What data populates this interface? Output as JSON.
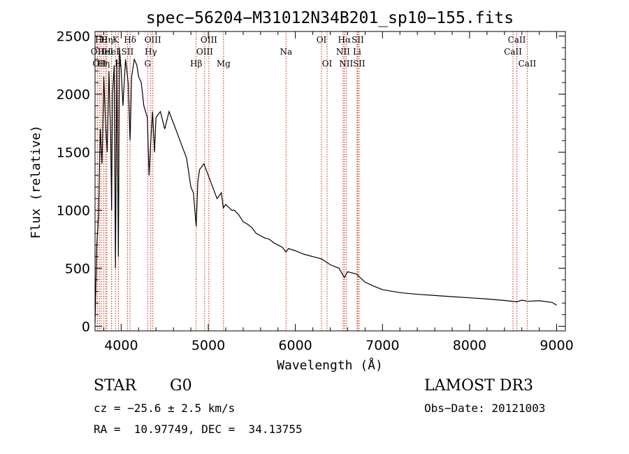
{
  "chart_data": {
    "type": "line",
    "title": "spec−56204−M31012N34B201_sp10−155.fits",
    "xlabel": "Wavelength (Å)",
    "ylabel": "Flux (relative)",
    "xlim": [
      3700,
      9100
    ],
    "ylim": [
      -40,
      2540
    ],
    "xticks": [
      4000,
      5000,
      6000,
      7000,
      8000,
      9000
    ],
    "yticks": [
      0,
      500,
      1000,
      1500,
      2000,
      2500
    ],
    "spectrum": {
      "x": [
        3700,
        3720,
        3740,
        3760,
        3780,
        3800,
        3820,
        3840,
        3860,
        3880,
        3890,
        3900,
        3920,
        3934,
        3950,
        3968,
        3980,
        4000,
        4020,
        4050,
        4080,
        4102,
        4120,
        4150,
        4180,
        4200,
        4230,
        4260,
        4300,
        4320,
        4340,
        4360,
        4383,
        4400,
        4450,
        4500,
        4550,
        4600,
        4650,
        4700,
        4750,
        4800,
        4830,
        4861,
        4880,
        4900,
        4950,
        5000,
        5050,
        5100,
        5150,
        5172,
        5200,
        5270,
        5300,
        5350,
        5400,
        5450,
        5500,
        5550,
        5600,
        5650,
        5700,
        5750,
        5800,
        5850,
        5893,
        5920,
        6000,
        6100,
        6200,
        6300,
        6400,
        6500,
        6563,
        6600,
        6700,
        6800,
        6900,
        7000,
        7200,
        7400,
        7600,
        7800,
        8000,
        8200,
        8400,
        8542,
        8600,
        8662,
        8800,
        8950,
        9000
      ],
      "y": [
        30,
        700,
        950,
        1700,
        1400,
        2150,
        1750,
        1500,
        2200,
        1600,
        1000,
        2000,
        2250,
        500,
        2300,
        600,
        2400,
        2200,
        1900,
        2300,
        2100,
        1600,
        2150,
        2300,
        2250,
        2150,
        2100,
        1900,
        1800,
        1300,
        1600,
        1850,
        1500,
        1800,
        1850,
        1700,
        1850,
        1750,
        1650,
        1550,
        1450,
        1200,
        1150,
        860,
        1250,
        1350,
        1400,
        1300,
        1200,
        1100,
        1150,
        1020,
        1050,
        1000,
        1000,
        960,
        900,
        880,
        850,
        800,
        780,
        760,
        750,
        720,
        700,
        680,
        640,
        670,
        650,
        620,
        600,
        580,
        530,
        500,
        420,
        470,
        450,
        380,
        345,
        315,
        290,
        275,
        265,
        255,
        245,
        235,
        222,
        210,
        225,
        215,
        220,
        205,
        180
      ]
    },
    "lines": [
      {
        "wl": 3727,
        "label": "OII",
        "row": 2
      },
      {
        "wl": 3750,
        "label": "OII",
        "row": 3
      },
      {
        "wl": 3770,
        "label": "Hθ",
        "row": 1
      },
      {
        "wl": 3798,
        "label": "Hη",
        "row": 3
      },
      {
        "wl": 3820,
        "label": "HeI",
        "row": 2
      },
      {
        "wl": 3835,
        "label": "Hη",
        "row": 1
      },
      {
        "wl": 3889,
        "label": "HeI",
        "row": 2
      },
      {
        "wl": 3934,
        "label": "K",
        "row": 1
      },
      {
        "wl": 3968,
        "label": "H",
        "row": 3
      },
      {
        "wl": 4072,
        "label": "SII",
        "row": 2
      },
      {
        "wl": 4102,
        "label": "Hδ",
        "row": 1
      },
      {
        "wl": 4304,
        "label": "G",
        "row": 3
      },
      {
        "wl": 4340,
        "label": "Hγ",
        "row": 2
      },
      {
        "wl": 4363,
        "label": "OIII",
        "row": 1
      },
      {
        "wl": 4861,
        "label": "Hβ",
        "row": 3
      },
      {
        "wl": 4959,
        "label": "OIII",
        "row": 2
      },
      {
        "wl": 5007,
        "label": "OIII",
        "row": 1
      },
      {
        "wl": 5175,
        "label": "Mg",
        "row": 3
      },
      {
        "wl": 5893,
        "label": "Na",
        "row": 2
      },
      {
        "wl": 6300,
        "label": "OI",
        "row": 1
      },
      {
        "wl": 6364,
        "label": "OI",
        "row": 3
      },
      {
        "wl": 6548,
        "label": "NII",
        "row": 2
      },
      {
        "wl": 6563,
        "label": "Hα",
        "row": 1
      },
      {
        "wl": 6583,
        "label": "NII",
        "row": 3
      },
      {
        "wl": 6716,
        "label": "SII",
        "row": 1
      },
      {
        "wl": 6708,
        "label": "Li",
        "row": 2
      },
      {
        "wl": 6731,
        "label": "SII",
        "row": 3
      },
      {
        "wl": 8498,
        "label": "CaII",
        "row": 2
      },
      {
        "wl": 8542,
        "label": "CaII",
        "row": 1
      },
      {
        "wl": 8662,
        "label": "CaII",
        "row": 3
      }
    ]
  },
  "info": {
    "class_label": "STAR",
    "subclass": "G0",
    "survey": "LAMOST DR3",
    "cz": "cz = −25.6 ± 2.5 km/s",
    "obs_date": "Obs−Date: 20121003",
    "coords": "RA =  10.97749, DEC =  34.13755"
  },
  "colors": {
    "line": "#000000",
    "marker": "#cc2200",
    "background": "#ffffff"
  }
}
